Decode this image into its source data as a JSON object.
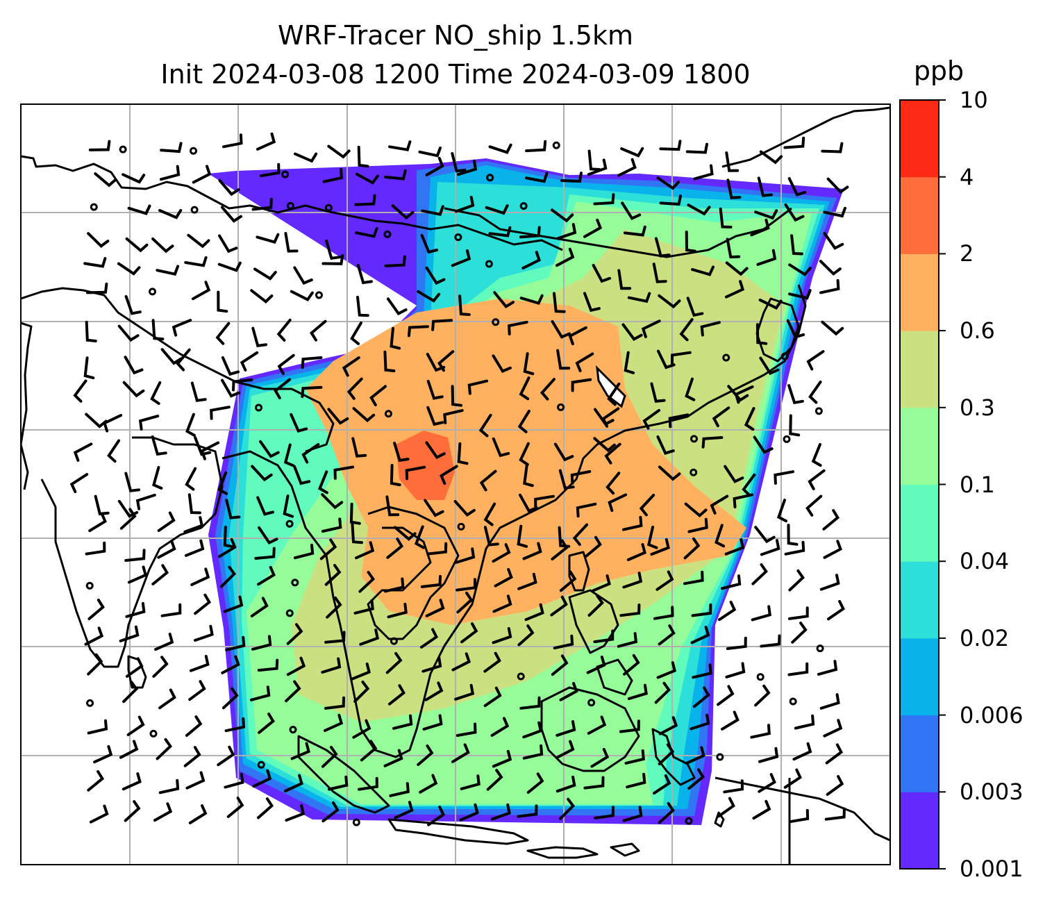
{
  "title": {
    "line1": "WRF-Tracer NO_ship 1.5km",
    "line2": "Init 2024-03-08 1200 Time 2024-03-09 1800"
  },
  "colorbar": {
    "unit": "ppb",
    "levels": [
      "0.001",
      "0.003",
      "0.006",
      "0.02",
      "0.04",
      "0.1",
      "0.3",
      "0.6",
      "2",
      "4",
      "10"
    ],
    "colors": [
      "#6429ff",
      "#3175f4",
      "#07b3ea",
      "#2ddfd9",
      "#61fbbe",
      "#95fc99",
      "#cbe181",
      "#ffb160",
      "#ff6d3b",
      "#ff2a15"
    ]
  },
  "map_field": {
    "palette": {
      "land_outline": "#000000",
      "grid": "#b0b0b0",
      "background": "#ffffff"
    }
  }
}
